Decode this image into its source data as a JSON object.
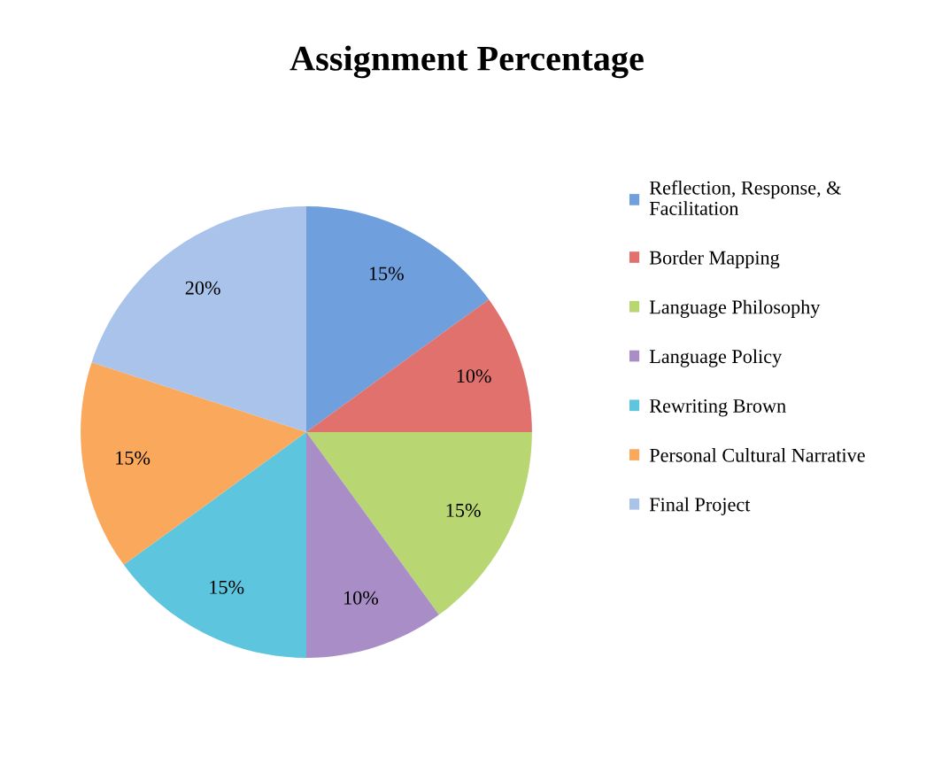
{
  "chart_data": {
    "type": "pie",
    "title": "Assignment Percentage",
    "categories": [
      "Reflection, Response, & Facilitation",
      "Border Mapping",
      "Language Philosophy",
      "Language Policy",
      "Rewriting Brown",
      "Personal Cultural Narrative",
      "Final Project"
    ],
    "values": [
      15,
      10,
      15,
      10,
      15,
      15,
      20
    ],
    "colors": [
      "#6f9fdc",
      "#e0716d",
      "#b8d672",
      "#a88dc6",
      "#5ec5de",
      "#f9a85c",
      "#a9c3ea"
    ],
    "value_labels": [
      "15%",
      "10%",
      "15%",
      "10%",
      "15%",
      "15%",
      "20%"
    ],
    "legend": "right"
  }
}
